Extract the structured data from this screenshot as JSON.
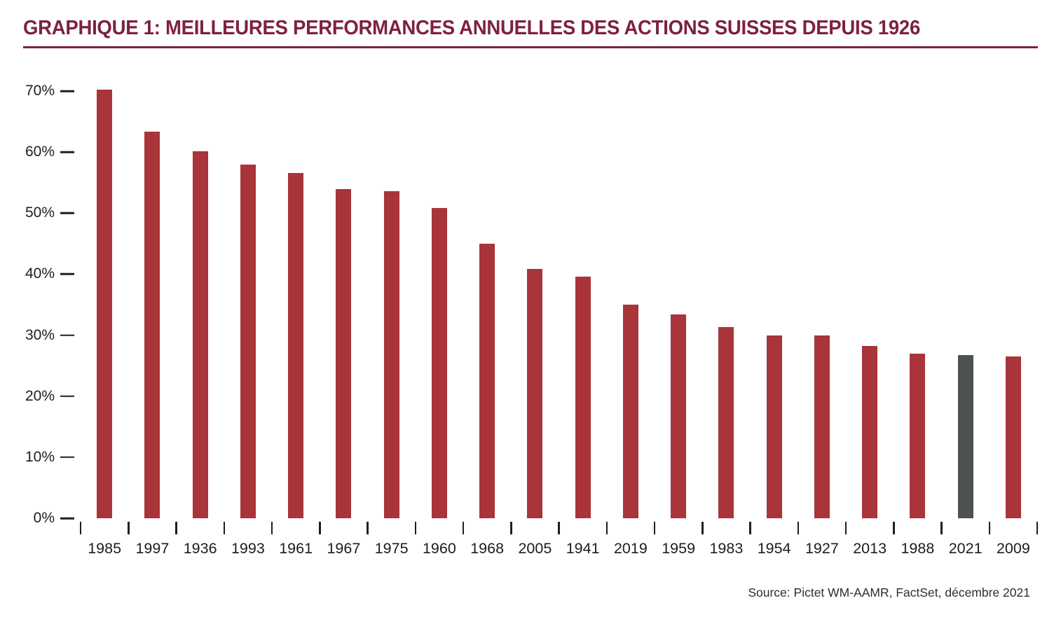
{
  "title": "GRAPHIQUE 1: MEILLEURES PERFORMANCES ANNUELLES DES ACTIONS SUISSES DEPUIS 1926",
  "source": "Source: Pictet WM-AAMR, FactSet, décembre 2021",
  "colors": {
    "title": "#7d2143",
    "bar": "#a93439",
    "highlight_bar": "#4d5152",
    "axis_text": "#1f1f1f"
  },
  "chart_data": {
    "type": "bar",
    "title": "GRAPHIQUE 1: MEILLEURES PERFORMANCES ANNUELLES DES ACTIONS SUISSES DEPUIS 1926",
    "categories": [
      "1985",
      "1997",
      "1936",
      "1993",
      "1961",
      "1967",
      "1975",
      "1960",
      "1968",
      "2005",
      "1941",
      "2019",
      "1959",
      "1983",
      "1954",
      "1927",
      "2013",
      "1988",
      "2021",
      "2009"
    ],
    "values": [
      70.2,
      63.3,
      60.1,
      58.0,
      56.6,
      53.9,
      53.6,
      50.8,
      45.0,
      40.8,
      39.6,
      35.0,
      33.4,
      31.3,
      30.0,
      29.9,
      28.2,
      27.0,
      26.7,
      26.5
    ],
    "highlight_category": "2021",
    "xlabel": "",
    "ylabel": "",
    "ylim": [
      0,
      70
    ],
    "ytick_step": 10,
    "ytick_suffix": "%",
    "grid": false,
    "legend": false,
    "source": "Source: Pictet WM-AAMR, FactSet, décembre 2021"
  }
}
